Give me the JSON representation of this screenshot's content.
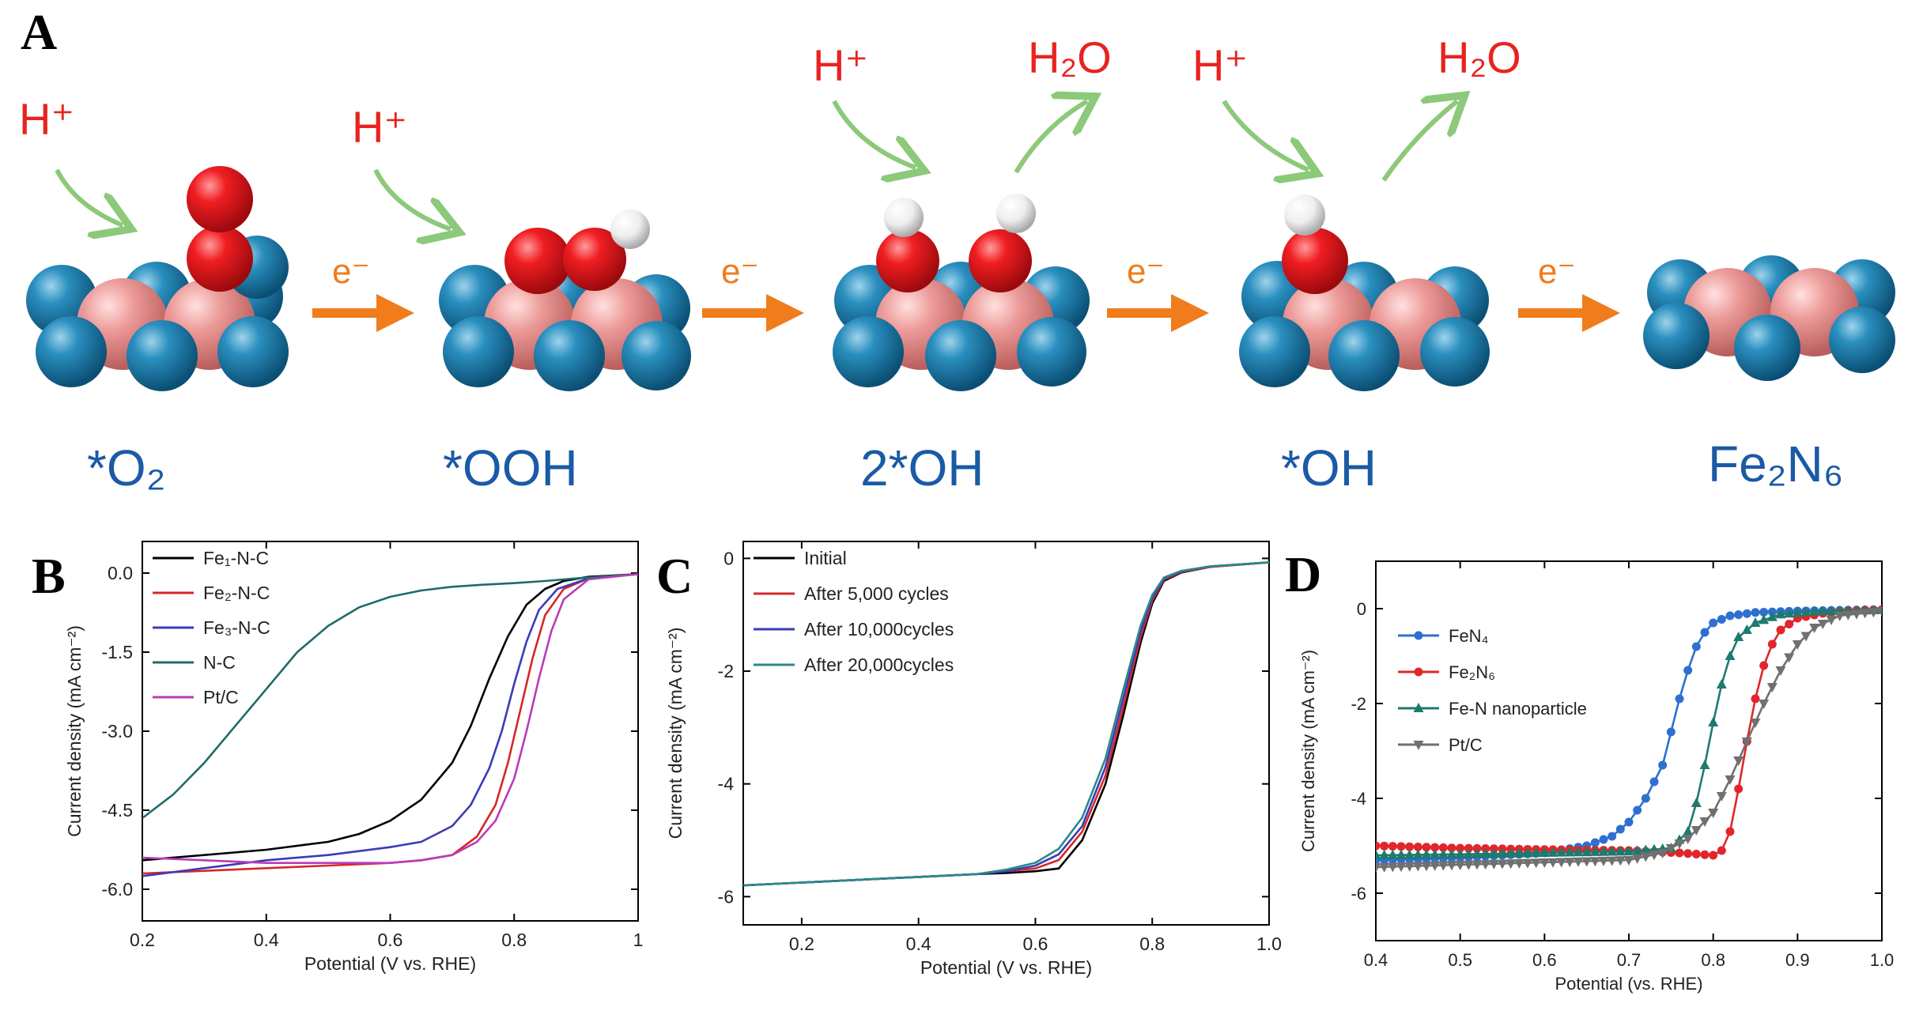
{
  "figure": {
    "panel_labels": [
      "A",
      "B",
      "C",
      "D"
    ],
    "panel_a": {
      "stages": [
        "*O₂",
        "*OOH",
        "2*OH",
        "*OH",
        "Fe₂N₆"
      ],
      "proton_label": "H⁺",
      "water_label": "H₂O",
      "electron_label": "e⁻",
      "colors": {
        "nitrogen": "#1a7fae",
        "iron": "#e8908f",
        "oxygen": "#e0151b",
        "hydrogen": "#f2f2f2",
        "proton_arrow": "#8cc97a",
        "electron_arrow": "#f07c1c",
        "labels": "#1a5aa6",
        "red_text": "#e8231f"
      }
    }
  },
  "chart_data": [
    {
      "panel": "B",
      "type": "line",
      "xlabel": "Potential (V vs. RHE)",
      "ylabel": "Current density (mA cm⁻²)",
      "xlim": [
        0.2,
        1.0
      ],
      "ylim": [
        -6.6,
        0.6
      ],
      "xticks": [
        0.2,
        0.4,
        0.6,
        0.8,
        1.0
      ],
      "xtick_labels": [
        "0.2",
        "0.4",
        "0.6",
        "0.8",
        "1"
      ],
      "yticks": [
        0.0,
        -1.5,
        -3.0,
        -4.5,
        -6.0
      ],
      "ytick_labels": [
        "0.0",
        "-1.5",
        "-3.0",
        "-4.5",
        "-6.0"
      ],
      "legend_position": "top-left",
      "series": [
        {
          "name": "Fe₁-N-C",
          "color": "#000000",
          "x": [
            0.2,
            0.3,
            0.4,
            0.5,
            0.55,
            0.6,
            0.65,
            0.7,
            0.73,
            0.76,
            0.79,
            0.82,
            0.85,
            0.88,
            0.92,
            1.0
          ],
          "y": [
            -5.45,
            -5.35,
            -5.25,
            -5.1,
            -4.95,
            -4.7,
            -4.3,
            -3.6,
            -2.9,
            -2.0,
            -1.2,
            -0.6,
            -0.3,
            -0.15,
            -0.07,
            -0.02
          ]
        },
        {
          "name": "Fe₂-N-C",
          "color": "#d62728",
          "x": [
            0.2,
            0.3,
            0.4,
            0.5,
            0.6,
            0.65,
            0.7,
            0.74,
            0.77,
            0.79,
            0.81,
            0.83,
            0.85,
            0.88,
            0.92,
            1.0
          ],
          "y": [
            -5.7,
            -5.65,
            -5.6,
            -5.55,
            -5.5,
            -5.45,
            -5.35,
            -5.0,
            -4.4,
            -3.6,
            -2.6,
            -1.6,
            -0.8,
            -0.3,
            -0.1,
            -0.02
          ]
        },
        {
          "name": "Fe₃-N-C",
          "color": "#3b3bb8",
          "x": [
            0.2,
            0.3,
            0.4,
            0.5,
            0.6,
            0.65,
            0.7,
            0.73,
            0.76,
            0.78,
            0.8,
            0.82,
            0.84,
            0.87,
            0.92,
            1.0
          ],
          "y": [
            -5.75,
            -5.6,
            -5.45,
            -5.35,
            -5.2,
            -5.1,
            -4.8,
            -4.4,
            -3.7,
            -3.0,
            -2.1,
            -1.3,
            -0.7,
            -0.3,
            -0.1,
            -0.02
          ]
        },
        {
          "name": "N-C",
          "color": "#1f6b6b",
          "x": [
            0.2,
            0.25,
            0.3,
            0.35,
            0.4,
            0.45,
            0.5,
            0.55,
            0.6,
            0.65,
            0.7,
            0.75,
            0.8,
            0.85,
            0.9,
            1.0
          ],
          "y": [
            -4.65,
            -4.2,
            -3.6,
            -2.9,
            -2.2,
            -1.5,
            -1.0,
            -0.65,
            -0.45,
            -0.33,
            -0.26,
            -0.22,
            -0.19,
            -0.15,
            -0.1,
            -0.02
          ]
        },
        {
          "name": "Pt/C",
          "color": "#b83cb8",
          "x": [
            0.2,
            0.3,
            0.4,
            0.5,
            0.6,
            0.65,
            0.7,
            0.74,
            0.77,
            0.8,
            0.82,
            0.84,
            0.86,
            0.88,
            0.92,
            1.0
          ],
          "y": [
            -5.4,
            -5.45,
            -5.5,
            -5.5,
            -5.5,
            -5.45,
            -5.35,
            -5.1,
            -4.7,
            -3.9,
            -3.0,
            -2.0,
            -1.1,
            -0.5,
            -0.12,
            -0.02
          ]
        }
      ]
    },
    {
      "panel": "C",
      "type": "line",
      "xlabel": "Potential (V vs. RHE)",
      "ylabel": "Current density (mA cm⁻²)",
      "xlim": [
        0.1,
        1.0
      ],
      "ylim": [
        -6.5,
        0.3
      ],
      "xticks": [
        0.2,
        0.4,
        0.6,
        0.8,
        1.0
      ],
      "xtick_labels": [
        "0.2",
        "0.4",
        "0.6",
        "0.8",
        "1.0"
      ],
      "yticks": [
        0,
        -2,
        -4,
        -6
      ],
      "ytick_labels": [
        "0",
        "-2",
        "-4",
        "-6"
      ],
      "legend_position": "top-left",
      "series": [
        {
          "name": "Initial",
          "color": "#000000",
          "x": [
            0.1,
            0.2,
            0.3,
            0.4,
            0.5,
            0.55,
            0.6,
            0.64,
            0.68,
            0.72,
            0.75,
            0.78,
            0.8,
            0.82,
            0.85,
            0.9,
            1.0
          ],
          "y": [
            -5.8,
            -5.75,
            -5.7,
            -5.65,
            -5.6,
            -5.58,
            -5.55,
            -5.5,
            -5.0,
            -4.0,
            -2.8,
            -1.5,
            -0.8,
            -0.4,
            -0.25,
            -0.15,
            -0.07
          ]
        },
        {
          "name": "After 5,000 cycles",
          "color": "#d62728",
          "x": [
            0.1,
            0.2,
            0.3,
            0.4,
            0.5,
            0.55,
            0.6,
            0.64,
            0.68,
            0.72,
            0.75,
            0.78,
            0.8,
            0.82,
            0.85,
            0.9,
            1.0
          ],
          "y": [
            -5.8,
            -5.75,
            -5.7,
            -5.65,
            -5.6,
            -5.55,
            -5.5,
            -5.35,
            -4.85,
            -3.85,
            -2.65,
            -1.4,
            -0.75,
            -0.38,
            -0.24,
            -0.15,
            -0.07
          ]
        },
        {
          "name": "After 10,000cycles",
          "color": "#3b3bb8",
          "x": [
            0.1,
            0.2,
            0.3,
            0.4,
            0.5,
            0.55,
            0.6,
            0.64,
            0.68,
            0.72,
            0.75,
            0.78,
            0.8,
            0.82,
            0.85,
            0.9,
            1.0
          ],
          "y": [
            -5.8,
            -5.75,
            -5.7,
            -5.65,
            -5.6,
            -5.55,
            -5.45,
            -5.25,
            -4.75,
            -3.7,
            -2.5,
            -1.3,
            -0.7,
            -0.36,
            -0.23,
            -0.14,
            -0.07
          ]
        },
        {
          "name": "After 20,000cycles",
          "color": "#2a8a8a",
          "x": [
            0.1,
            0.2,
            0.3,
            0.4,
            0.5,
            0.55,
            0.6,
            0.64,
            0.68,
            0.72,
            0.75,
            0.78,
            0.8,
            0.82,
            0.85,
            0.9,
            1.0
          ],
          "y": [
            -5.8,
            -5.75,
            -5.7,
            -5.65,
            -5.6,
            -5.52,
            -5.4,
            -5.15,
            -4.6,
            -3.55,
            -2.35,
            -1.2,
            -0.65,
            -0.34,
            -0.22,
            -0.14,
            -0.07
          ]
        }
      ]
    },
    {
      "panel": "D",
      "type": "line",
      "xlabel": "Potential (vs. RHE)",
      "ylabel": "Current density (mA cm⁻²)",
      "xlim": [
        0.4,
        1.0
      ],
      "ylim": [
        -7.0,
        1.0
      ],
      "xticks": [
        0.4,
        0.5,
        0.6,
        0.7,
        0.8,
        0.9,
        1.0
      ],
      "xtick_labels": [
        "0.4",
        "0.5",
        "0.6",
        "0.7",
        "0.8",
        "0.9",
        "1.0"
      ],
      "yticks": [
        0,
        -2,
        -4,
        -6
      ],
      "ytick_labels": [
        "0",
        "-2",
        "-4",
        "-6"
      ],
      "legend_position": "middle-left",
      "series": [
        {
          "name": "FeN₄",
          "color": "#2e6fd0",
          "marker": "circle",
          "x": [
            0.4,
            0.5,
            0.6,
            0.65,
            0.68,
            0.7,
            0.72,
            0.74,
            0.75,
            0.76,
            0.77,
            0.78,
            0.79,
            0.8,
            0.82,
            0.85,
            0.9,
            1.0
          ],
          "y": [
            -5.3,
            -5.25,
            -5.15,
            -5.0,
            -4.8,
            -4.5,
            -4.0,
            -3.3,
            -2.6,
            -1.9,
            -1.3,
            -0.8,
            -0.5,
            -0.3,
            -0.15,
            -0.08,
            -0.05,
            -0.02
          ]
        },
        {
          "name": "Fe₂N₆",
          "color": "#e0262b",
          "marker": "circle",
          "x": [
            0.4,
            0.5,
            0.6,
            0.7,
            0.76,
            0.8,
            0.81,
            0.82,
            0.83,
            0.84,
            0.85,
            0.86,
            0.87,
            0.88,
            0.9,
            0.93,
            0.96,
            1.0
          ],
          "y": [
            -5.0,
            -5.05,
            -5.08,
            -5.1,
            -5.15,
            -5.2,
            -5.1,
            -4.7,
            -3.8,
            -2.8,
            -1.9,
            -1.2,
            -0.75,
            -0.45,
            -0.2,
            -0.1,
            -0.05,
            -0.02
          ]
        },
        {
          "name": "Fe-N nanoparticle",
          "color": "#1f7a6e",
          "marker": "triangle-up",
          "x": [
            0.4,
            0.5,
            0.6,
            0.7,
            0.75,
            0.77,
            0.78,
            0.79,
            0.8,
            0.81,
            0.82,
            0.83,
            0.85,
            0.88,
            0.92,
            1.0
          ],
          "y": [
            -5.2,
            -5.18,
            -5.15,
            -5.12,
            -5.05,
            -4.7,
            -4.1,
            -3.3,
            -2.4,
            -1.6,
            -1.0,
            -0.6,
            -0.3,
            -0.12,
            -0.06,
            -0.03
          ]
        },
        {
          "name": "Pt/C",
          "color": "#707070",
          "marker": "triangle-down",
          "x": [
            0.4,
            0.5,
            0.6,
            0.7,
            0.74,
            0.77,
            0.8,
            0.82,
            0.84,
            0.86,
            0.88,
            0.9,
            0.92,
            0.95,
            1.0
          ],
          "y": [
            -5.45,
            -5.4,
            -5.35,
            -5.3,
            -5.15,
            -4.85,
            -4.3,
            -3.6,
            -2.8,
            -2.0,
            -1.3,
            -0.75,
            -0.4,
            -0.15,
            -0.05
          ]
        }
      ]
    }
  ]
}
